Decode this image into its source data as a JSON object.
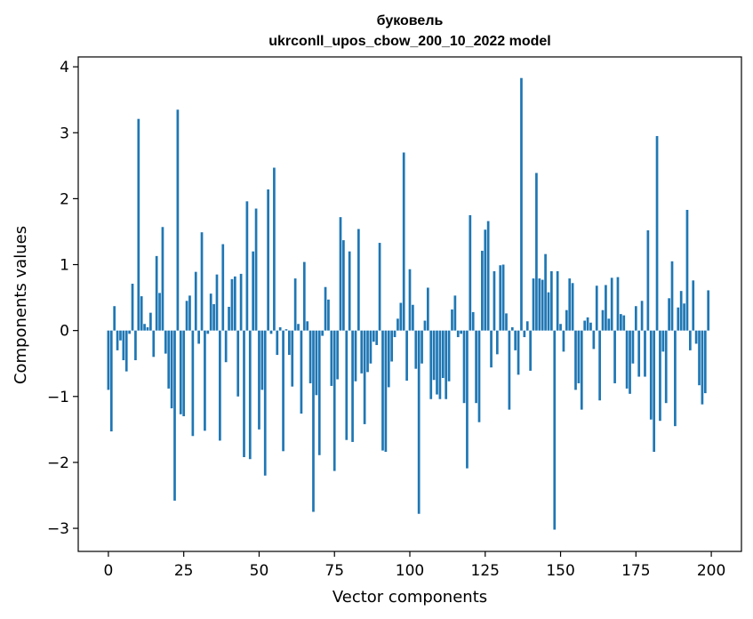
{
  "chart_data": {
    "type": "bar",
    "title_line1": "буковель",
    "title_line2": "ukrconll_upos_cbow_200_10_2022 model",
    "xlabel": "Vector components",
    "ylabel": "Components values",
    "xlim": [
      -10,
      210
    ],
    "ylim": [
      -3.35,
      4.15
    ],
    "xticks": [
      0,
      25,
      50,
      75,
      100,
      125,
      150,
      175,
      200
    ],
    "xtick_labels": [
      "0",
      "25",
      "50",
      "75",
      "100",
      "125",
      "150",
      "175",
      "200"
    ],
    "yticks": [
      -3,
      -2,
      -1,
      0,
      1,
      2,
      3,
      4
    ],
    "ytick_labels": [
      "−3",
      "−2",
      "−1",
      "0",
      "1",
      "2",
      "3",
      "4"
    ],
    "grid": false,
    "bar_color": "#1f77b4",
    "values": [
      -0.9,
      -1.53,
      0.37,
      -0.3,
      -0.15,
      -0.45,
      -0.62,
      -0.05,
      0.71,
      -0.45,
      3.21,
      0.52,
      0.1,
      0.05,
      0.27,
      -0.4,
      1.13,
      0.57,
      1.57,
      -0.35,
      -0.88,
      -1.18,
      -2.58,
      3.35,
      -1.27,
      -1.3,
      0.45,
      0.53,
      -1.6,
      0.89,
      -0.2,
      1.49,
      -1.52,
      -0.05,
      0.56,
      0.4,
      0.85,
      -1.67,
      1.31,
      -0.48,
      0.36,
      0.78,
      0.82,
      -1.0,
      0.86,
      -1.92,
      1.96,
      -1.95,
      1.2,
      1.85,
      -1.5,
      -0.9,
      -2.2,
      2.14,
      -0.05,
      2.47,
      -0.37,
      0.05,
      -1.83,
      0.02,
      -0.37,
      -0.85,
      0.79,
      0.1,
      -1.26,
      1.04,
      0.14,
      -0.8,
      -2.75,
      -0.98,
      -1.89,
      -0.08,
      0.66,
      0.47,
      -0.84,
      -2.13,
      -0.74,
      1.72,
      1.37,
      -1.66,
      1.2,
      -1.69,
      -0.77,
      1.54,
      -0.65,
      -1.42,
      -0.63,
      -0.5,
      -0.17,
      -0.22,
      1.33,
      -1.82,
      -1.84,
      -0.86,
      -0.47,
      -0.1,
      0.18,
      0.42,
      2.7,
      -0.76,
      0.93,
      0.39,
      -0.58,
      -2.78,
      -0.5,
      0.15,
      0.65,
      -1.04,
      -0.75,
      -0.97,
      -1.04,
      -0.72,
      -1.04,
      -0.77,
      0.32,
      0.53,
      -0.1,
      -0.05,
      -1.1,
      -2.09,
      1.75,
      0.28,
      -1.1,
      -1.39,
      1.21,
      1.53,
      1.66,
      -0.56,
      0.9,
      -0.36,
      0.99,
      1.0,
      0.26,
      -1.2,
      0.05,
      -0.3,
      -0.67,
      3.83,
      -0.1,
      0.14,
      -0.61,
      0.79,
      2.39,
      0.79,
      0.77,
      1.16,
      0.58,
      0.9,
      -3.02,
      0.9,
      0.1,
      -0.32,
      0.31,
      0.79,
      0.72,
      -0.9,
      -0.8,
      -1.2,
      0.15,
      0.2,
      0.12,
      -0.28,
      0.68,
      -1.06,
      0.31,
      0.69,
      0.18,
      0.8,
      -0.8,
      0.81,
      0.25,
      0.23,
      -0.88,
      -0.96,
      -0.5,
      0.37,
      -0.7,
      0.45,
      -0.7,
      1.52,
      -1.35,
      -1.84,
      2.95,
      -1.37,
      -0.32,
      -1.1,
      0.49,
      1.05,
      -1.45,
      0.35,
      0.6,
      0.41,
      1.83,
      -0.3,
      0.76,
      -0.2,
      -0.83,
      -1.12,
      -0.95,
      0.61
    ]
  }
}
